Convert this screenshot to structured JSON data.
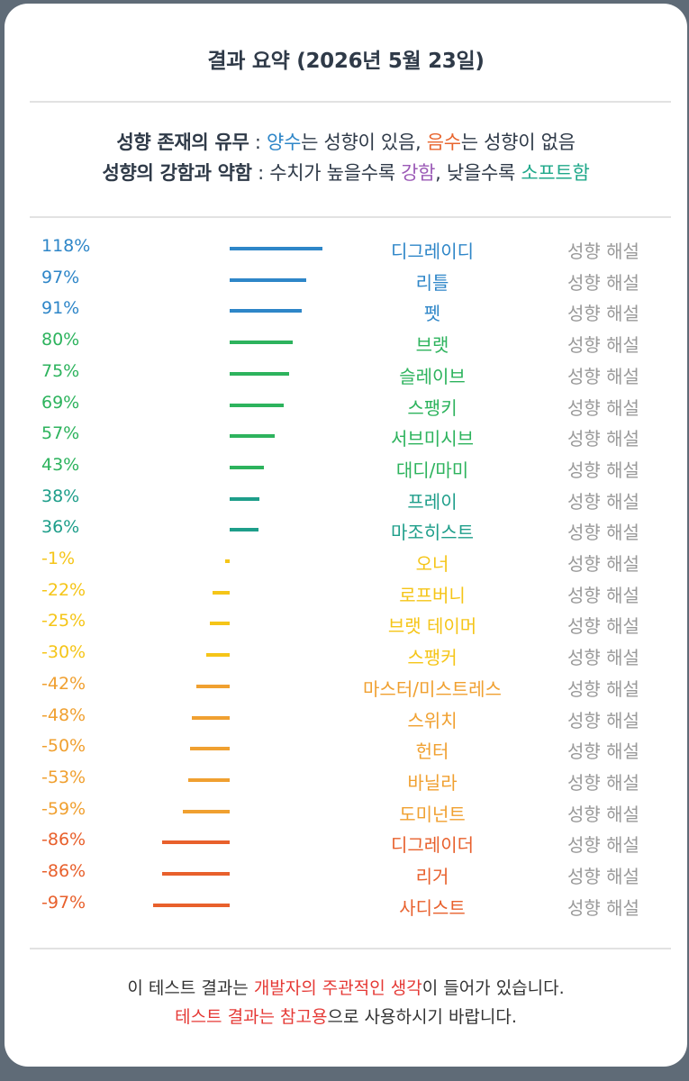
{
  "header": {
    "title": "결과 요약 (2026년 5월 23일)"
  },
  "legend": {
    "line1": {
      "label": "성향 존재의 유무",
      "sep": " : ",
      "positive": "양수",
      "positive_text": "는 성향이 있음, ",
      "negative": "음수",
      "negative_text": "는 성향이 없음"
    },
    "line2": {
      "label": "성향의 강함과 약함",
      "sep": " : ",
      "text1": "수치가 높을수록 ",
      "strong": "강함",
      "text2": ", 낮을수록 ",
      "soft": "소프트함"
    }
  },
  "explain_label": "성향 해설",
  "colors": {
    "blue": "#2e86c8",
    "green": "#2db35d",
    "teal": "#1e9e8a",
    "yellow": "#f5c518",
    "orange": "#f0a030",
    "red": "#e8602c"
  },
  "chart_data": {
    "type": "bar",
    "orientation": "horizontal",
    "unit": "%",
    "categories": [
      "디그레이디",
      "리틀",
      "펫",
      "브랫",
      "슬레이브",
      "스팽키",
      "서브미시브",
      "대디/마미",
      "프레이",
      "마조히스트",
      "오너",
      "로프버니",
      "브랫 테이머",
      "스팽커",
      "마스터/미스트레스",
      "스위치",
      "헌터",
      "바닐라",
      "도미넌트",
      "디그레이더",
      "리거",
      "사디스트"
    ],
    "values": [
      118,
      97,
      91,
      80,
      75,
      69,
      57,
      43,
      38,
      36,
      -1,
      -22,
      -25,
      -30,
      -42,
      -48,
      -50,
      -53,
      -59,
      -86,
      -86,
      -97
    ],
    "labels": [
      "118%",
      "97%",
      "91%",
      "80%",
      "75%",
      "69%",
      "57%",
      "43%",
      "38%",
      "36%",
      "-1%",
      "-22%",
      "-25%",
      "-30%",
      "-42%",
      "-48%",
      "-50%",
      "-53%",
      "-59%",
      "-86%",
      "-86%",
      "-97%"
    ],
    "colors": [
      "blue",
      "blue",
      "blue",
      "green",
      "green",
      "green",
      "green",
      "green",
      "teal",
      "teal",
      "yellow",
      "yellow",
      "yellow",
      "yellow",
      "orange",
      "orange",
      "orange",
      "orange",
      "orange",
      "red",
      "red",
      "red"
    ]
  },
  "footer": {
    "line1_a": "이 테스트 결과는 ",
    "line1_hl": "개발자의 주관적인 생각",
    "line1_b": "이 들어가 있습니다.",
    "line2_hl": "테스트 결과는 참고용",
    "line2_b": "으로 사용하시기 바랍니다."
  }
}
